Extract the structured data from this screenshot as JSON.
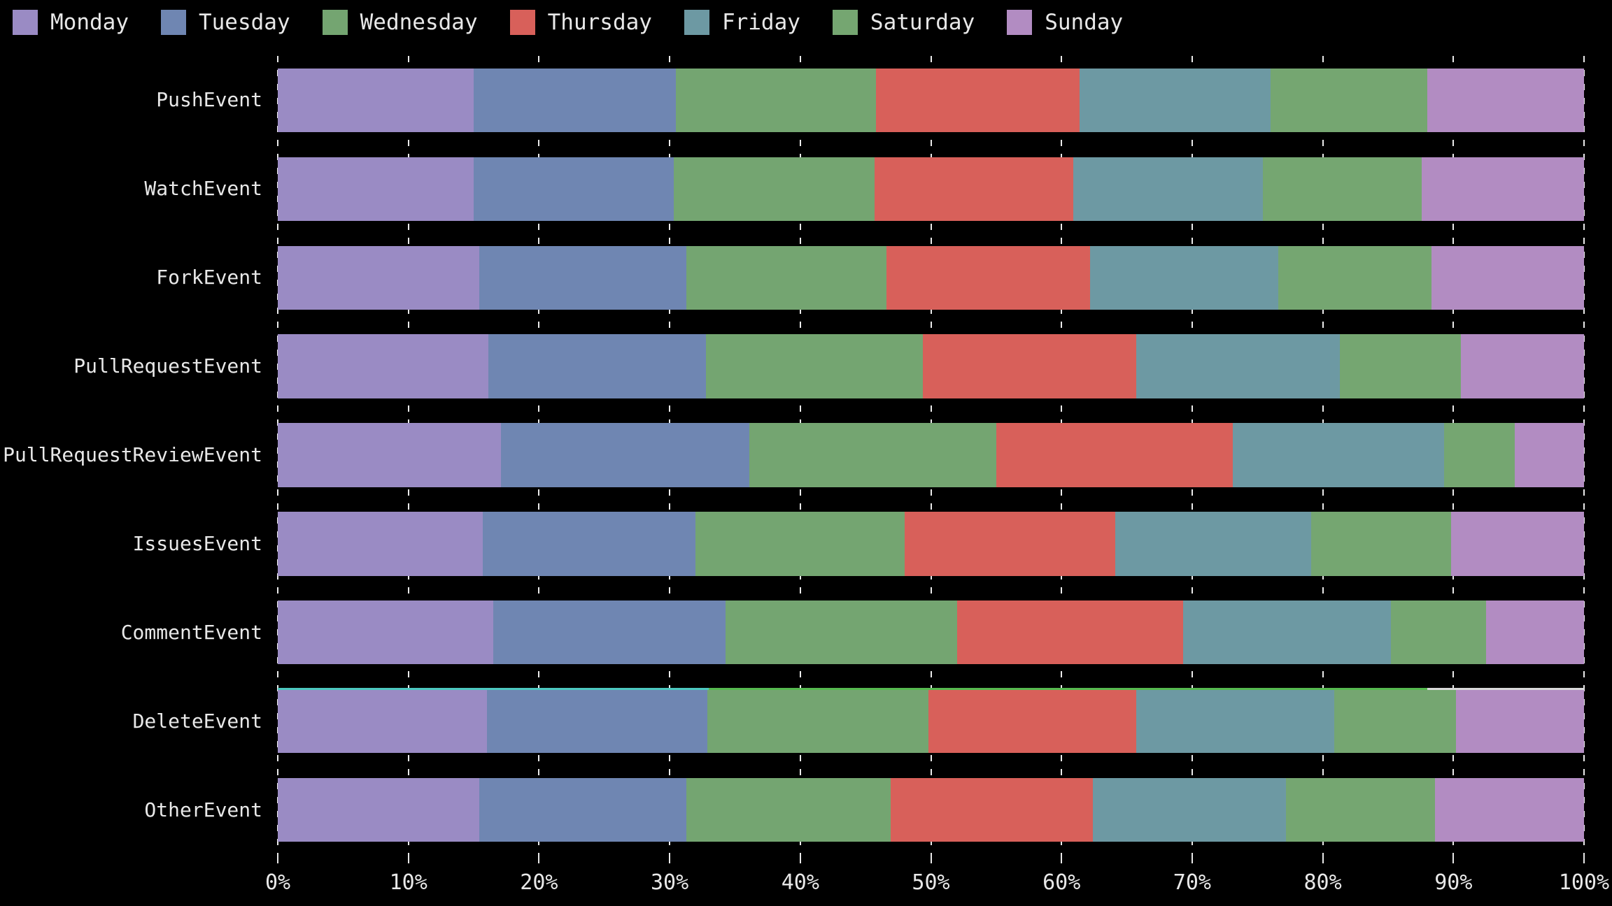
{
  "chart_data": {
    "type": "bar",
    "orientation": "horizontal",
    "stacked": true,
    "title": "",
    "xlabel": "",
    "ylabel": "",
    "xlim": [
      0,
      100
    ],
    "grid": "dashed-vertical-white",
    "legend_position": "top-left",
    "background_color": "#000000",
    "text_color": "#e8e8e8",
    "x_ticks": [
      "0%",
      "10%",
      "20%",
      "30%",
      "40%",
      "50%",
      "60%",
      "70%",
      "80%",
      "90%",
      "100%"
    ],
    "categories": [
      "PushEvent",
      "WatchEvent",
      "ForkEvent",
      "PullRequestEvent",
      "PullRequestReviewEvent",
      "IssuesEvent",
      "CommentEvent",
      "DeleteEvent",
      "OtherEvent"
    ],
    "value_unit": "percent",
    "series": [
      {
        "name": "Monday",
        "color": "#9a8bc4",
        "values": [
          15.0,
          15.0,
          15.4,
          16.1,
          17.1,
          15.7,
          16.5,
          16.0,
          15.4
        ]
      },
      {
        "name": "Tuesday",
        "color": "#6f86b2",
        "values": [
          15.5,
          15.3,
          15.9,
          16.7,
          19.0,
          16.3,
          17.8,
          16.9,
          15.9
        ]
      },
      {
        "name": "Wednesday",
        "color": "#74a571",
        "values": [
          15.3,
          15.4,
          15.3,
          16.6,
          18.9,
          16.0,
          17.7,
          16.9,
          15.6
        ]
      },
      {
        "name": "Thursday",
        "color": "#d8605a",
        "values": [
          15.6,
          15.2,
          15.6,
          16.3,
          18.1,
          16.1,
          17.3,
          15.9,
          15.5
        ]
      },
      {
        "name": "Friday",
        "color": "#6d99a3",
        "values": [
          14.6,
          14.5,
          14.4,
          15.6,
          16.2,
          15.0,
          15.9,
          15.2,
          14.8
        ]
      },
      {
        "name": "Saturday",
        "color": "#75a671",
        "values": [
          12.0,
          12.2,
          11.7,
          9.3,
          5.4,
          10.7,
          7.3,
          9.3,
          11.4
        ]
      },
      {
        "name": "Sunday",
        "color": "#b28cc2",
        "values": [
          12.0,
          12.4,
          11.7,
          9.4,
          5.3,
          10.2,
          7.5,
          9.8,
          11.4
        ]
      }
    ],
    "artifact_stripe": {
      "category": "DeleteEvent",
      "position": "top-edge",
      "segments": [
        {
          "color": "#4cc8c0",
          "width": 33
        },
        {
          "color": "#55b94f",
          "width": 55
        },
        {
          "color": "#d9d9d9",
          "width": 12
        }
      ]
    }
  }
}
